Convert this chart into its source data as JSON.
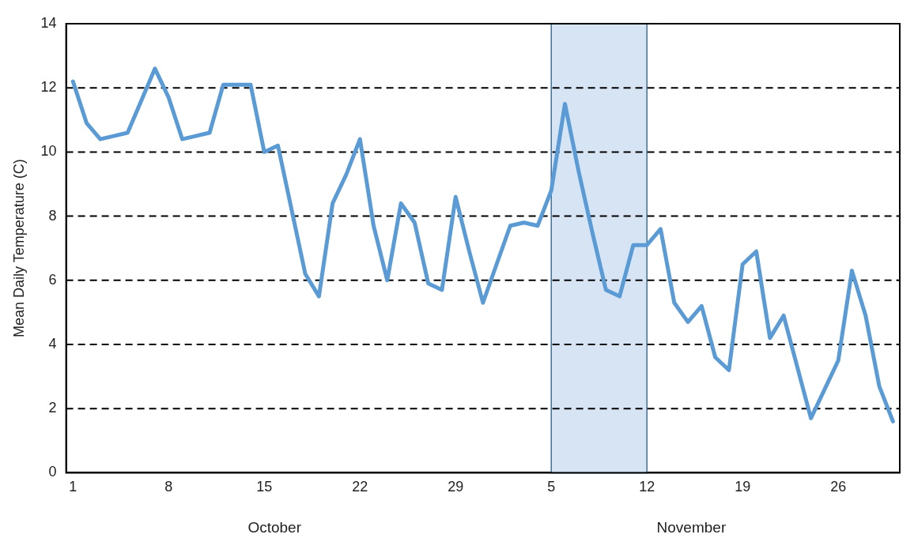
{
  "chart_data": {
    "type": "line",
    "ylabel": "Mean Daily Temperature (C)",
    "x": [
      "--10-01",
      "--10-02",
      "--10-03",
      "--10-04",
      "--10-05",
      "--10-06",
      "--10-07",
      "--10-08",
      "--10-09",
      "--10-10",
      "--10-11",
      "--10-12",
      "--10-13",
      "--10-14",
      "--10-15",
      "--10-16",
      "--10-17",
      "--10-18",
      "--10-19",
      "--10-20",
      "--10-21",
      "--10-22",
      "--10-23",
      "--10-24",
      "--10-25",
      "--10-26",
      "--10-27",
      "--10-28",
      "--10-29",
      "--10-30",
      "--10-31",
      "--11-01",
      "--11-02",
      "--11-03",
      "--11-04",
      "--11-05",
      "--11-06",
      "--11-07",
      "--11-08",
      "--11-09",
      "--11-10",
      "--11-11",
      "--11-12",
      "--11-13",
      "--11-14",
      "--11-15",
      "--11-16",
      "--11-17",
      "--11-18",
      "--11-19",
      "--11-20",
      "--11-21",
      "--11-22",
      "--11-23",
      "--11-24",
      "--11-25",
      "--11-26",
      "--11-27",
      "--11-28",
      "--11-29",
      "--11-30"
    ],
    "series": [
      {
        "color": "#5b9bd5",
        "values": [
          12.2,
          10.9,
          10.4,
          10.5,
          10.6,
          11.6,
          12.6,
          11.7,
          10.4,
          10.5,
          10.6,
          12.1,
          12.1,
          12.1,
          10.0,
          10.2,
          8.2,
          6.2,
          5.5,
          8.4,
          9.3,
          10.4,
          7.7,
          6.0,
          8.4,
          7.8,
          5.9,
          5.7,
          8.6,
          6.9,
          5.3,
          6.5,
          7.7,
          7.8,
          7.7,
          8.8,
          11.5,
          9.4,
          7.5,
          5.7,
          5.5,
          7.1,
          7.1,
          7.6,
          5.3,
          4.7,
          5.2,
          3.6,
          3.2,
          6.5,
          6.9,
          4.2,
          4.9,
          3.3,
          1.7,
          2.6,
          3.5,
          6.3,
          4.9,
          2.7,
          1.6
        ]
      }
    ],
    "xlim": [
      "--09-30T12:00",
      "--11-30T12:00"
    ],
    "xticks": [
      {
        "value": "--10-01",
        "label": "1"
      },
      {
        "value": "--10-08",
        "label": "8"
      },
      {
        "value": "--10-15",
        "label": "15"
      },
      {
        "value": "--10-22",
        "label": "22"
      },
      {
        "value": "--10-29",
        "label": "29"
      },
      {
        "value": "--11-05",
        "label": "5"
      },
      {
        "value": "--11-12",
        "label": "12"
      },
      {
        "value": "--11-19",
        "label": "19"
      },
      {
        "value": "--11-26",
        "label": "26"
      }
    ],
    "ylim": [
      0,
      14
    ],
    "yticks": [
      0,
      2,
      4,
      6,
      8,
      10,
      12,
      14
    ],
    "grid": "y",
    "legend": false,
    "marker": "none",
    "line_style": "solid",
    "bands": [
      {
        "axis": "x",
        "from": "--11-05",
        "to": "--11-12",
        "color": "#d6e4f4"
      }
    ],
    "annotations": [
      "October",
      "November"
    ]
  }
}
